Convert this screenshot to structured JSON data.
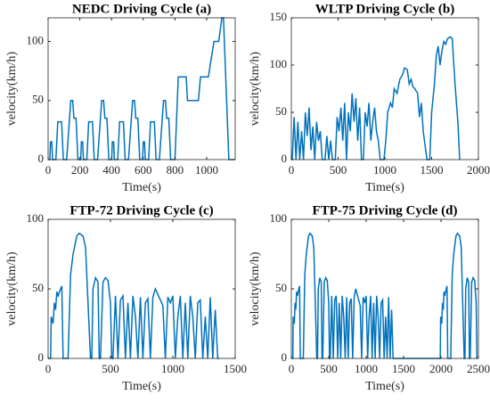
{
  "chart_data": [
    {
      "type": "line",
      "title": "NEDC Driving Cycle (a)",
      "xlabel": "Time(s)",
      "ylabel": "velocity(km/h)",
      "x": [
        0,
        11,
        15,
        23,
        28,
        49,
        61,
        85,
        96,
        117,
        143,
        155,
        163,
        176,
        188,
        195,
        206,
        210,
        218,
        223,
        244,
        256,
        280,
        291,
        312,
        338,
        350,
        358,
        371,
        383,
        390,
        401,
        405,
        413,
        418,
        439,
        451,
        475,
        486,
        507,
        533,
        545,
        553,
        566,
        578,
        585,
        596,
        600,
        608,
        613,
        634,
        646,
        670,
        681,
        702,
        728,
        740,
        748,
        761,
        773,
        780,
        800,
        821,
        871,
        879,
        948,
        961,
        1011,
        1046,
        1076,
        1096,
        1106,
        1140,
        1180
      ],
      "values": [
        0,
        0,
        15,
        15,
        0,
        0,
        32,
        32,
        0,
        0,
        50,
        50,
        35,
        35,
        0,
        0,
        0,
        15,
        15,
        0,
        0,
        32,
        32,
        0,
        0,
        50,
        50,
        35,
        35,
        0,
        0,
        0,
        15,
        15,
        0,
        0,
        32,
        32,
        0,
        0,
        50,
        50,
        35,
        35,
        0,
        0,
        0,
        15,
        15,
        0,
        0,
        32,
        32,
        0,
        0,
        50,
        50,
        35,
        35,
        0,
        0,
        0,
        70,
        70,
        50,
        50,
        70,
        70,
        100,
        100,
        120,
        120,
        0,
        0
      ],
      "color": "#0072bd",
      "xlim": [
        0,
        1180
      ],
      "ylim": [
        0,
        120
      ],
      "xticks": [
        0,
        200,
        400,
        600,
        800,
        1000
      ],
      "yticks": [
        0,
        50,
        100
      ]
    },
    {
      "type": "line",
      "title": "WLTP Driving Cycle (b)",
      "xlabel": "Time(s)",
      "ylabel": "velocity(km/h)",
      "x": [
        0,
        10,
        30,
        50,
        70,
        90,
        110,
        130,
        150,
        170,
        190,
        210,
        230,
        250,
        270,
        290,
        310,
        330,
        360,
        380,
        400,
        420,
        440,
        470,
        490,
        510,
        530,
        550,
        570,
        590,
        610,
        630,
        650,
        670,
        690,
        710,
        730,
        750,
        770,
        790,
        810,
        830,
        850,
        870,
        890,
        910,
        930,
        950,
        990,
        1010,
        1030,
        1060,
        1080,
        1100,
        1130,
        1160,
        1190,
        1210,
        1240,
        1260,
        1280,
        1300,
        1320,
        1350,
        1370,
        1390,
        1410,
        1430,
        1450,
        1480,
        1500,
        1530,
        1550,
        1570,
        1590,
        1610,
        1630,
        1650,
        1670,
        1700,
        1720,
        1750,
        1780,
        1800
      ],
      "values": [
        0,
        0,
        45,
        0,
        40,
        0,
        30,
        0,
        50,
        25,
        55,
        10,
        35,
        0,
        40,
        20,
        30,
        0,
        0,
        25,
        0,
        20,
        0,
        0,
        45,
        30,
        55,
        20,
        60,
        0,
        50,
        30,
        70,
        40,
        65,
        20,
        55,
        0,
        0,
        50,
        35,
        60,
        20,
        40,
        55,
        30,
        20,
        0,
        0,
        20,
        50,
        60,
        55,
        75,
        70,
        85,
        90,
        97,
        95,
        80,
        85,
        77,
        75,
        70,
        45,
        60,
        30,
        15,
        0,
        0,
        50,
        80,
        110,
        120,
        100,
        115,
        125,
        122,
        128,
        130,
        128,
        80,
        40,
        0
      ],
      "color": "#0072bd",
      "xlim": [
        0,
        2000
      ],
      "ylim": [
        0,
        150
      ],
      "xticks": [
        0,
        500,
        1000,
        1500,
        2000
      ],
      "yticks": [
        0,
        50,
        100,
        150
      ]
    },
    {
      "type": "line",
      "title": "FTP-72 Driving Cycle (c)",
      "xlabel": "Time(s)",
      "ylabel": "velocity(km/h)",
      "x": [
        0,
        20,
        25,
        40,
        50,
        60,
        70,
        80,
        100,
        110,
        120,
        130,
        160,
        180,
        200,
        230,
        250,
        280,
        300,
        320,
        340,
        350,
        360,
        380,
        400,
        410,
        420,
        440,
        460,
        480,
        500,
        510,
        520,
        540,
        560,
        580,
        600,
        620,
        640,
        660,
        680,
        700,
        720,
        740,
        760,
        780,
        800,
        820,
        840,
        860,
        880,
        900,
        920,
        940,
        960,
        980,
        1000,
        1020,
        1040,
        1060,
        1080,
        1100,
        1120,
        1140,
        1160,
        1180,
        1200,
        1220,
        1240,
        1260,
        1280,
        1300,
        1320,
        1340,
        1360,
        1370
      ],
      "values": [
        0,
        0,
        30,
        25,
        40,
        35,
        48,
        45,
        50,
        52,
        0,
        0,
        0,
        60,
        75,
        88,
        90,
        88,
        80,
        40,
        0,
        0,
        50,
        58,
        55,
        0,
        0,
        55,
        58,
        56,
        40,
        0,
        0,
        45,
        0,
        42,
        45,
        0,
        40,
        0,
        45,
        30,
        0,
        44,
        0,
        40,
        43,
        0,
        44,
        50,
        46,
        42,
        38,
        0,
        44,
        40,
        45,
        0,
        30,
        45,
        0,
        40,
        0,
        45,
        30,
        0,
        40,
        42,
        0,
        30,
        0,
        44,
        0,
        35,
        0,
        0
      ],
      "color": "#0072bd",
      "xlim": [
        0,
        1500
      ],
      "ylim": [
        0,
        100
      ],
      "xticks": [
        0,
        500,
        1000,
        1500
      ],
      "yticks": [
        0,
        50,
        100
      ]
    },
    {
      "type": "line",
      "title": "FTP-75 Driving Cycle (d)",
      "xlabel": "Time(s)",
      "ylabel": "velocity(km/h)",
      "x": [
        0,
        20,
        25,
        40,
        50,
        60,
        70,
        80,
        100,
        110,
        120,
        130,
        160,
        180,
        200,
        230,
        250,
        280,
        300,
        320,
        340,
        350,
        360,
        380,
        400,
        410,
        420,
        440,
        460,
        480,
        500,
        510,
        520,
        540,
        560,
        580,
        600,
        620,
        640,
        660,
        680,
        700,
        720,
        740,
        760,
        780,
        800,
        820,
        840,
        860,
        880,
        900,
        920,
        940,
        960,
        980,
        1000,
        1020,
        1040,
        1060,
        1080,
        1100,
        1120,
        1140,
        1160,
        1180,
        1200,
        1220,
        1240,
        1260,
        1280,
        1300,
        1320,
        1340,
        1360,
        1370,
        1970,
        1990,
        1995,
        2010,
        2020,
        2030,
        2040,
        2050,
        2070,
        2080,
        2090,
        2130,
        2150,
        2170,
        2200,
        2220,
        2250,
        2270,
        2290,
        2310,
        2320,
        2330,
        2350,
        2370,
        2380,
        2390,
        2410,
        2430,
        2450,
        2470,
        2480
      ],
      "values": [
        0,
        0,
        30,
        25,
        40,
        35,
        48,
        45,
        50,
        52,
        0,
        0,
        0,
        60,
        75,
        88,
        90,
        88,
        80,
        40,
        0,
        0,
        50,
        58,
        55,
        0,
        0,
        55,
        58,
        56,
        40,
        0,
        0,
        45,
        0,
        42,
        45,
        0,
        40,
        0,
        45,
        30,
        0,
        44,
        0,
        40,
        43,
        0,
        44,
        50,
        46,
        42,
        38,
        0,
        44,
        40,
        45,
        0,
        30,
        45,
        0,
        40,
        0,
        45,
        30,
        0,
        40,
        42,
        0,
        30,
        0,
        44,
        0,
        35,
        0,
        0,
        0,
        0,
        30,
        25,
        40,
        35,
        48,
        45,
        50,
        52,
        0,
        0,
        60,
        75,
        88,
        90,
        88,
        80,
        40,
        0,
        0,
        50,
        58,
        55,
        0,
        0,
        55,
        58,
        56,
        40,
        0
      ],
      "color": "#0072bd",
      "xlim": [
        0,
        2500
      ],
      "ylim": [
        0,
        100
      ],
      "xticks": [
        0,
        500,
        1000,
        1500,
        2000,
        2500
      ],
      "yticks": [
        0,
        50,
        100
      ]
    }
  ]
}
